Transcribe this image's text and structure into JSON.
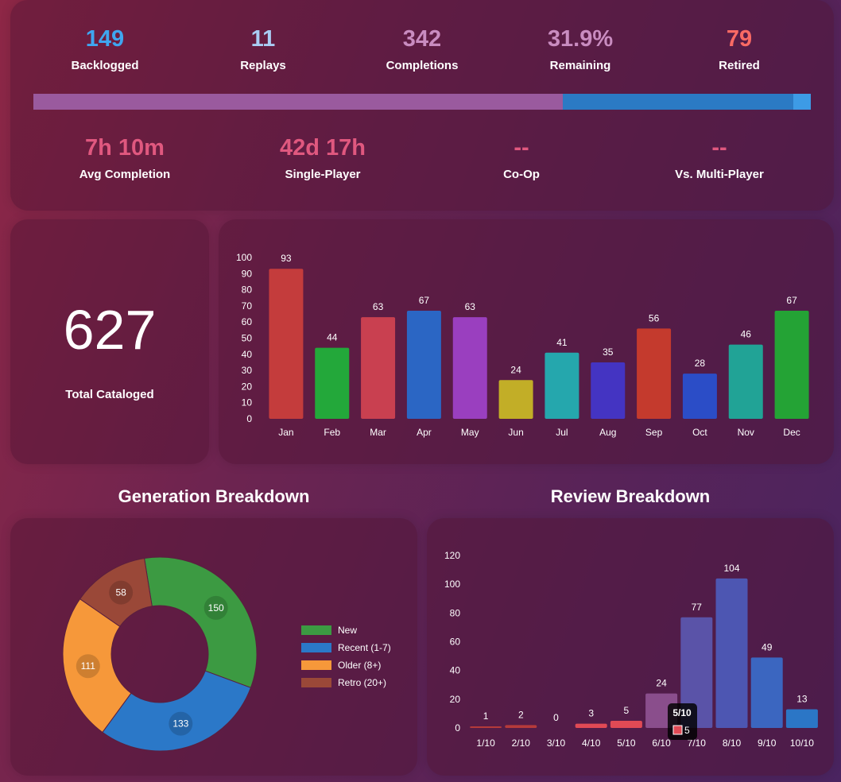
{
  "summary": {
    "stats": [
      {
        "value": "149",
        "label": "Backlogged",
        "color": "#3fa6f0"
      },
      {
        "value": "11",
        "label": "Replays",
        "color": "#a9cdf4"
      },
      {
        "value": "342",
        "label": "Completions",
        "color": "#c98cc0"
      },
      {
        "value": "31.9%",
        "label": "Remaining",
        "color": "#c98cc0"
      },
      {
        "value": "79",
        "label": "Retired",
        "color": "#f96a64"
      }
    ],
    "progress_segments": [
      {
        "name": "completed",
        "percent": 68.1,
        "color": "#9a5a9e"
      },
      {
        "name": "backlogged",
        "percent": 29.7,
        "color": "#2b7ac4"
      },
      {
        "name": "replays",
        "percent": 2.2,
        "color": "#3d9be6"
      }
    ],
    "times": [
      {
        "value": "7h 10m",
        "label": "Avg Completion"
      },
      {
        "value": "42d 17h",
        "label": "Single-Player"
      },
      {
        "value": "--",
        "label": "Co-Op"
      },
      {
        "value": "--",
        "label": "Vs. Multi-Player"
      }
    ]
  },
  "total": {
    "value": "627",
    "label": "Total Cataloged"
  },
  "generation": {
    "title": "Generation Breakdown",
    "legend": [
      "New",
      "Recent (1-7)",
      "Older (8+)",
      "Retro (20+)"
    ]
  },
  "review": {
    "title": "Review Breakdown"
  },
  "chart_data": [
    {
      "type": "bar",
      "title": "",
      "categories": [
        "Jan",
        "Feb",
        "Mar",
        "Apr",
        "May",
        "Jun",
        "Jul",
        "Aug",
        "Sep",
        "Oct",
        "Nov",
        "Dec"
      ],
      "values": [
        93,
        44,
        63,
        67,
        63,
        24,
        41,
        35,
        56,
        28,
        46,
        67
      ],
      "colors": [
        "#c43c3c",
        "#23a83a",
        "#c94050",
        "#2b66c4",
        "#9a3fbf",
        "#c2ae27",
        "#25a7ad",
        "#4434c2",
        "#c43a2d",
        "#2b4dc7",
        "#21a396",
        "#24a335"
      ],
      "ylim": [
        0,
        100
      ],
      "yticks": [
        0,
        10,
        20,
        30,
        40,
        50,
        60,
        70,
        80,
        90,
        100
      ],
      "xlabel": "",
      "ylabel": ""
    },
    {
      "type": "pie",
      "title": "Generation Breakdown",
      "categories": [
        "New",
        "Recent (1-7)",
        "Older (8+)",
        "Retro (20+)"
      ],
      "values": [
        150,
        133,
        111,
        58
      ],
      "colors": [
        "#3c9a42",
        "#2b78c8",
        "#f6983a",
        "#9a4838"
      ],
      "legend": "right"
    },
    {
      "type": "bar",
      "title": "Review Breakdown",
      "categories": [
        "1/10",
        "2/10",
        "3/10",
        "4/10",
        "5/10",
        "6/10",
        "7/10",
        "8/10",
        "9/10",
        "10/10"
      ],
      "values": [
        1,
        2,
        0,
        3,
        5,
        24,
        77,
        104,
        49,
        13
      ],
      "colors": [
        "#b53a3a",
        "#b53a3a",
        "#b53a3a",
        "#e04a55",
        "#e04a55",
        "#8a4e8c",
        "#5a53a8",
        "#4d56b2",
        "#3b66c0",
        "#2b76c6"
      ],
      "ylim": [
        0,
        120
      ],
      "yticks": [
        0,
        20,
        40,
        60,
        80,
        100,
        120
      ],
      "tooltip": {
        "title": "5/10",
        "value": "5",
        "color": "#e04a55"
      },
      "xlabel": "",
      "ylabel": ""
    }
  ]
}
